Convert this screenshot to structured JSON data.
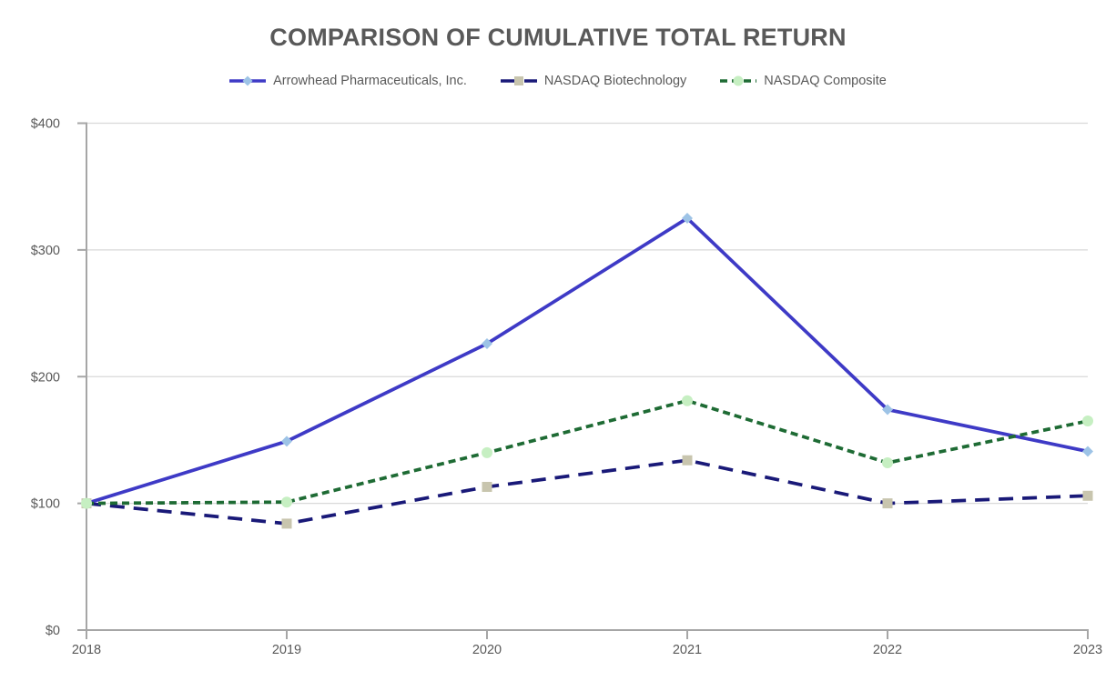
{
  "chart_data": {
    "type": "line",
    "title": "COMPARISON OF CUMULATIVE TOTAL RETURN",
    "categories": [
      "2018",
      "2019",
      "2020",
      "2021",
      "2022",
      "2023"
    ],
    "series": [
      {
        "name": "Arrowhead Pharmaceuticals, Inc.",
        "values": [
          100,
          149,
          226,
          325,
          174,
          141
        ],
        "line_color": "#3e3ac6",
        "line_style": "solid",
        "marker": "diamond",
        "marker_color": "#9dc3e6"
      },
      {
        "name": "NASDAQ Biotechnology",
        "values": [
          100,
          84,
          113,
          134,
          100,
          106
        ],
        "line_color": "#191978",
        "line_style": "long-dash",
        "marker": "square",
        "marker_color": "#c8c5ae"
      },
      {
        "name": "NASDAQ Composite",
        "values": [
          100,
          101,
          140,
          181,
          132,
          165
        ],
        "line_color": "#1e6b34",
        "line_style": "dash",
        "marker": "circle",
        "marker_color": "#c6efc2"
      }
    ],
    "xlabel": "",
    "ylabel": "",
    "y_min": 0,
    "y_max": 400,
    "y_step": 100,
    "y_ticks": [
      "$0",
      "$100",
      "$200",
      "$300",
      "$400"
    ],
    "ylim": [
      0,
      400
    ],
    "grid": "horizontal",
    "legend_position": "top",
    "colors": {
      "text": "#595959",
      "axis": "#a6a6a6",
      "gridline": "#d9d9d9",
      "background": "#ffffff"
    }
  }
}
